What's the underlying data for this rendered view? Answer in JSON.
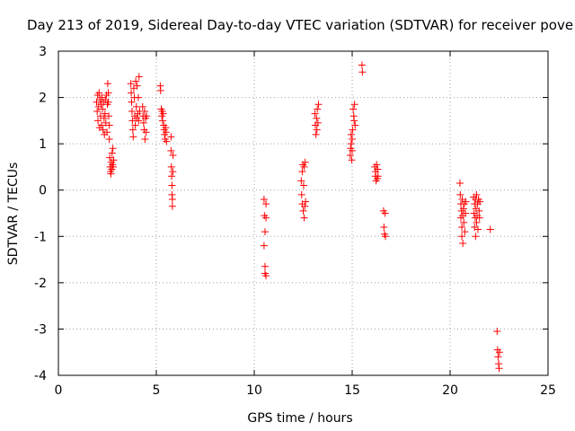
{
  "chart_data": {
    "type": "scatter",
    "title": "Day 213 of 2019, Sidereal Day-to-day VTEC variation (SDTVAR) for receiver pove",
    "xlabel": "GPS time / hours",
    "ylabel": "SDTVAR / TECUs",
    "xlim": [
      0,
      25
    ],
    "ylim": [
      -4,
      3
    ],
    "xticks": [
      0,
      5,
      10,
      15,
      20,
      25
    ],
    "yticks": [
      -4,
      -3,
      -2,
      -1,
      0,
      1,
      2,
      3
    ],
    "xtick_labels": [
      "0",
      "5",
      "10",
      "15",
      "20",
      "25"
    ],
    "ytick_labels": [
      "-4",
      "-3",
      "-2",
      "-1",
      "0",
      "1",
      "2",
      "3"
    ],
    "grid": true,
    "marker": "+",
    "color": "#ff0000",
    "series": [
      {
        "name": "SDTVAR",
        "points": [
          [
            1.95,
            1.9
          ],
          [
            1.98,
            1.7
          ],
          [
            2.0,
            2.05
          ],
          [
            2.02,
            1.5
          ],
          [
            2.05,
            1.8
          ],
          [
            2.08,
            2.1
          ],
          [
            2.1,
            1.35
          ],
          [
            2.12,
            1.95
          ],
          [
            2.15,
            1.6
          ],
          [
            2.18,
            1.85
          ],
          [
            2.2,
            1.4
          ],
          [
            2.22,
            2.0
          ],
          [
            2.25,
            1.75
          ],
          [
            2.28,
            1.3
          ],
          [
            2.3,
            1.9
          ],
          [
            2.33,
            1.55
          ],
          [
            2.35,
            1.2
          ],
          [
            2.38,
            1.65
          ],
          [
            2.4,
            1.95
          ],
          [
            2.42,
            1.45
          ],
          [
            2.45,
            2.05
          ],
          [
            2.48,
            1.25
          ],
          [
            2.5,
            1.85
          ],
          [
            2.52,
            2.3
          ],
          [
            2.55,
            2.1
          ],
          [
            2.55,
            1.9
          ],
          [
            2.57,
            1.6
          ],
          [
            2.6,
            1.4
          ],
          [
            2.6,
            1.1
          ],
          [
            2.62,
            0.7
          ],
          [
            2.64,
            0.5
          ],
          [
            2.66,
            0.4
          ],
          [
            2.68,
            0.35
          ],
          [
            2.7,
            0.6
          ],
          [
            2.72,
            0.45
          ],
          [
            2.74,
            0.8
          ],
          [
            2.76,
            0.55
          ],
          [
            2.78,
            0.9
          ],
          [
            2.8,
            0.5
          ],
          [
            2.82,
            0.65
          ],
          [
            3.7,
            2.3
          ],
          [
            3.72,
            2.1
          ],
          [
            3.74,
            1.9
          ],
          [
            3.76,
            1.7
          ],
          [
            3.78,
            1.5
          ],
          [
            3.8,
            1.3
          ],
          [
            3.82,
            1.15
          ],
          [
            3.85,
            2.2
          ],
          [
            3.88,
            2.0
          ],
          [
            3.9,
            1.6
          ],
          [
            3.92,
            1.4
          ],
          [
            3.95,
            2.35
          ],
          [
            3.98,
            1.8
          ],
          [
            4.0,
            1.55
          ],
          [
            4.02,
            2.25
          ],
          [
            4.05,
            1.65
          ],
          [
            4.08,
            2.0
          ],
          [
            4.1,
            1.5
          ],
          [
            4.12,
            2.45
          ],
          [
            4.15,
            1.7
          ],
          [
            4.3,
            1.8
          ],
          [
            4.32,
            1.6
          ],
          [
            4.35,
            1.45
          ],
          [
            4.38,
            1.3
          ],
          [
            4.4,
            1.7
          ],
          [
            4.42,
            1.1
          ],
          [
            4.45,
            1.55
          ],
          [
            4.48,
            1.25
          ],
          [
            4.5,
            1.6
          ],
          [
            5.2,
            2.25
          ],
          [
            5.22,
            2.15
          ],
          [
            5.25,
            1.75
          ],
          [
            5.28,
            1.6
          ],
          [
            5.3,
            1.7
          ],
          [
            5.32,
            1.5
          ],
          [
            5.35,
            1.65
          ],
          [
            5.38,
            1.4
          ],
          [
            5.4,
            1.3
          ],
          [
            5.42,
            1.2
          ],
          [
            5.45,
            1.1
          ],
          [
            5.48,
            1.35
          ],
          [
            5.5,
            1.25
          ],
          [
            5.52,
            1.05
          ],
          [
            5.75,
            1.15
          ],
          [
            5.75,
            0.85
          ],
          [
            5.77,
            0.5
          ],
          [
            5.78,
            0.3
          ],
          [
            5.8,
            0.1
          ],
          [
            5.8,
            -0.1
          ],
          [
            5.82,
            -0.2
          ],
          [
            5.82,
            -0.35
          ],
          [
            5.84,
            0.4
          ],
          [
            5.85,
            0.75
          ],
          [
            10.5,
            -0.2
          ],
          [
            10.52,
            -0.55
          ],
          [
            10.55,
            -0.9
          ],
          [
            10.5,
            -1.2
          ],
          [
            10.55,
            -1.65
          ],
          [
            10.55,
            -1.8
          ],
          [
            10.6,
            -1.85
          ],
          [
            10.6,
            -0.3
          ],
          [
            10.6,
            -0.6
          ],
          [
            12.4,
            0.2
          ],
          [
            12.42,
            -0.1
          ],
          [
            12.45,
            0.4
          ],
          [
            12.45,
            -0.3
          ],
          [
            12.48,
            0.55
          ],
          [
            12.5,
            -0.45
          ],
          [
            12.52,
            0.1
          ],
          [
            12.55,
            -0.6
          ],
          [
            12.55,
            0.5
          ],
          [
            12.58,
            -0.35
          ],
          [
            12.6,
            0.6
          ],
          [
            12.62,
            -0.25
          ],
          [
            13.1,
            1.65
          ],
          [
            13.12,
            1.4
          ],
          [
            13.15,
            1.2
          ],
          [
            13.18,
            1.55
          ],
          [
            13.2,
            1.3
          ],
          [
            13.22,
            1.75
          ],
          [
            13.25,
            1.45
          ],
          [
            13.28,
            1.85
          ],
          [
            14.9,
            0.75
          ],
          [
            14.92,
            0.9
          ],
          [
            14.95,
            1.0
          ],
          [
            14.95,
            1.2
          ],
          [
            14.98,
            0.65
          ],
          [
            15.0,
            1.1
          ],
          [
            15.0,
            0.85
          ],
          [
            15.02,
            1.3
          ],
          [
            15.05,
            1.75
          ],
          [
            15.08,
            1.6
          ],
          [
            15.1,
            1.5
          ],
          [
            15.12,
            1.85
          ],
          [
            15.15,
            1.4
          ],
          [
            15.5,
            2.7
          ],
          [
            15.52,
            2.55
          ],
          [
            16.15,
            0.5
          ],
          [
            16.18,
            0.3
          ],
          [
            16.2,
            0.4
          ],
          [
            16.22,
            0.2
          ],
          [
            16.25,
            0.55
          ],
          [
            16.28,
            0.25
          ],
          [
            16.3,
            0.45
          ],
          [
            16.32,
            0.3
          ],
          [
            16.6,
            -0.45
          ],
          [
            16.62,
            -0.8
          ],
          [
            16.65,
            -0.95
          ],
          [
            16.68,
            -0.5
          ],
          [
            16.7,
            -1.0
          ],
          [
            20.5,
            0.15
          ],
          [
            20.52,
            -0.1
          ],
          [
            20.55,
            -0.3
          ],
          [
            20.55,
            -0.6
          ],
          [
            20.58,
            -0.45
          ],
          [
            20.6,
            -0.8
          ],
          [
            20.6,
            -1.0
          ],
          [
            20.62,
            -0.2
          ],
          [
            20.65,
            -0.55
          ],
          [
            20.65,
            -1.15
          ],
          [
            20.68,
            -0.4
          ],
          [
            20.7,
            -0.7
          ],
          [
            20.72,
            -0.3
          ],
          [
            20.75,
            -0.9
          ],
          [
            20.78,
            -0.5
          ],
          [
            20.8,
            -0.25
          ],
          [
            21.2,
            -0.15
          ],
          [
            21.22,
            -0.5
          ],
          [
            21.25,
            -0.3
          ],
          [
            21.25,
            -0.8
          ],
          [
            21.28,
            -0.6
          ],
          [
            21.3,
            -0.2
          ],
          [
            21.3,
            -1.0
          ],
          [
            21.32,
            -0.4
          ],
          [
            21.35,
            -0.7
          ],
          [
            21.35,
            -0.1
          ],
          [
            21.38,
            -0.55
          ],
          [
            21.4,
            -0.3
          ],
          [
            21.42,
            -0.85
          ],
          [
            21.45,
            -0.2
          ],
          [
            21.48,
            -0.45
          ],
          [
            21.5,
            -0.6
          ],
          [
            21.52,
            -0.25
          ],
          [
            22.05,
            -0.85
          ],
          [
            22.4,
            -3.05
          ],
          [
            22.42,
            -3.45
          ],
          [
            22.45,
            -3.6
          ],
          [
            22.48,
            -3.75
          ],
          [
            22.5,
            -3.85
          ],
          [
            22.52,
            -3.5
          ]
        ]
      }
    ]
  }
}
